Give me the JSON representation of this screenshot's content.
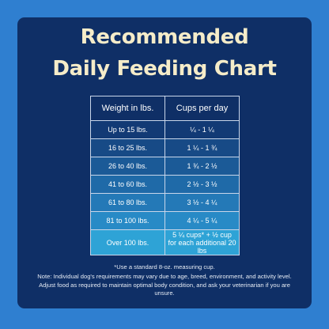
{
  "title_line1": "Recommended",
  "title_line2": "Daily Feeding Chart",
  "table": {
    "headers": [
      "Weight in lbs.",
      "Cups per day"
    ],
    "rows": [
      {
        "weight": "Up to 15 lbs.",
        "cups": "¼ - 1 ¼"
      },
      {
        "weight": "16 to 25 lbs.",
        "cups": "1 ¼ - 1 ¾"
      },
      {
        "weight": "26 to 40 lbs.",
        "cups": "1 ¾ - 2 ½"
      },
      {
        "weight": "41 to 60 lbs.",
        "cups": "2 ½ - 3 ½"
      },
      {
        "weight": "61 to 80 lbs.",
        "cups": "3 ½ - 4 ¼"
      },
      {
        "weight": "81 to 100 lbs.",
        "cups": "4 ¼ - 5 ¼"
      },
      {
        "weight": "Over 100 lbs.",
        "cups": "5 ¼ cups* + ½ cup for each additional 20 lbs"
      }
    ]
  },
  "footnote_1": "*Use a standard 8-oz. measuring cup.",
  "footnote_2": "Note: Individual dog's requirements may vary due to age, breed, environment, and activity level. Adjust food as required to maintain optimal body condition, and ask your veterinarian if you are unsure.",
  "colors": {
    "outer_background": "#2f7fd0",
    "panel_background": "#0f2f66",
    "title_text": "#f5ecc9",
    "row_fills": [
      "#123a75",
      "#174a86",
      "#1b5a97",
      "#1f6aa8",
      "#2479b7",
      "#288ac6",
      "#2ea3d6"
    ]
  }
}
